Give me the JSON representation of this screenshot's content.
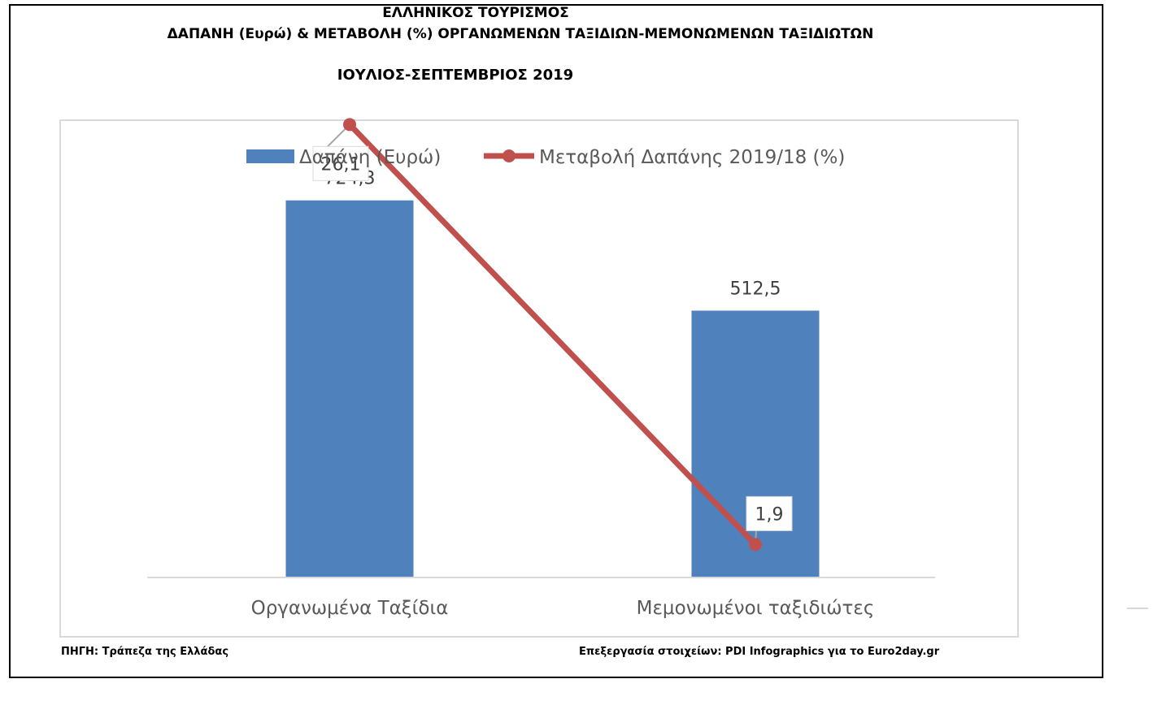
{
  "header": {
    "line1": "ΕΛΛΗΝΙΚΟΣ ΤΟΥΡΙΣΜΟΣ",
    "line2": "ΔΑΠΑΝΗ (Ευρώ) & ΜΕΤΑΒΟΛΗ (%) ΟΡΓΑΝΩΜΕΝΩΝ ΤΑΞΙΔΙΩΝ-ΜΕΜΟΝΩΜΕΝΩΝ ΤΑΞΙΔΙΩΤΩΝ",
    "line3": "ΙΟΥΛΙΟΣ-ΣΕΠΤΕΜΒΡΙΟΣ 2019"
  },
  "footer": {
    "source": "ΠΗΓΗ: Τράπεζα της Ελλάδας",
    "credit": "Επεξεργασία στοιχείων: PDI Infographics για το Euro2day.gr"
  },
  "chart_data": {
    "type": "bar",
    "categories": [
      "Οργανωμένα Ταξίδια",
      "Μεμονωμένοι ταξιδιώτες"
    ],
    "series": [
      {
        "name": "Δαπάνη (Ευρώ)",
        "kind": "bar",
        "axis": "primary",
        "values": [
          724.3,
          512.5
        ],
        "labels": [
          "724,3",
          "512,5"
        ],
        "color": "#4f81bd"
      },
      {
        "name": "Μεταβολή Δαπάνης 2019/18 (%)",
        "kind": "line",
        "axis": "secondary",
        "values": [
          26.1,
          1.9
        ],
        "labels": [
          "26,1",
          "1,9"
        ],
        "color": "#c0504d"
      }
    ],
    "ylim": [
      0,
      1000
    ],
    "y2lim": [
      0,
      30
    ],
    "legend": "top",
    "grid": false
  }
}
